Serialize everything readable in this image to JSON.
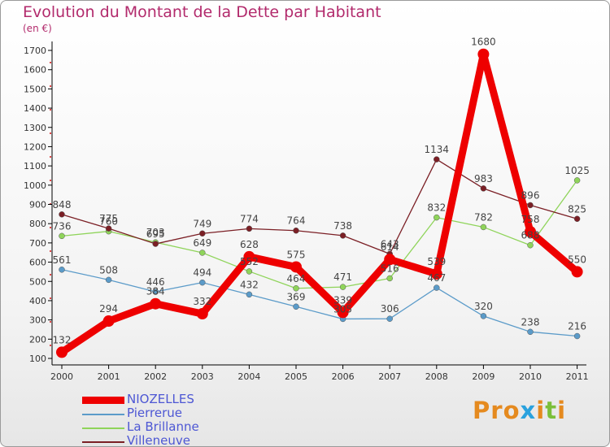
{
  "header": {
    "title": "Evolution du Montant de la Dette par Habitant",
    "unit": "(en €)"
  },
  "logo": {
    "text": "Proxiti",
    "letters": [
      "P",
      "r",
      "o",
      "x",
      "i",
      "t",
      "i"
    ],
    "colors": [
      "#e58a1f",
      "#e58a1f",
      "#e58a1f",
      "#2aa2de",
      "#e58a1f",
      "#7bbf3a",
      "#e58a1f"
    ]
  },
  "chart_data": {
    "type": "line",
    "title": "Evolution du Montant de la Dette par Habitant",
    "ylabel": "(en €)",
    "xlabel": "",
    "categories": [
      "2000",
      "2001",
      "2002",
      "2003",
      "2004",
      "2005",
      "2006",
      "2007",
      "2008",
      "2009",
      "2010",
      "2011"
    ],
    "yticks": [
      100,
      200,
      300,
      400,
      500,
      600,
      700,
      800,
      900,
      1000,
      1100,
      1200,
      1300,
      1400,
      1500,
      1600,
      1700
    ],
    "ylim": [
      100,
      1700
    ],
    "grid": false,
    "legend_position": "bottom-left",
    "series": [
      {
        "name": "NIOZELLES",
        "color": "#ee0000",
        "values": [
          132,
          294,
          384,
          332,
          628,
          575,
          339,
          614,
          539,
          1680,
          758,
          550
        ]
      },
      {
        "name": "Pierrerue",
        "color": "#5b9bc9",
        "values": [
          561,
          508,
          446,
          494,
          432,
          369,
          305,
          306,
          467,
          320,
          238,
          216
        ]
      },
      {
        "name": "La Brillanne",
        "color": "#8fd45a",
        "values": [
          736,
          760,
          703,
          649,
          552,
          464,
          471,
          516,
          832,
          782,
          688,
          1025
        ]
      },
      {
        "name": "Villeneuve",
        "color": "#7b1f25",
        "values": [
          848,
          775,
          695,
          749,
          774,
          764,
          738,
          643,
          1134,
          983,
          896,
          825
        ]
      }
    ]
  }
}
